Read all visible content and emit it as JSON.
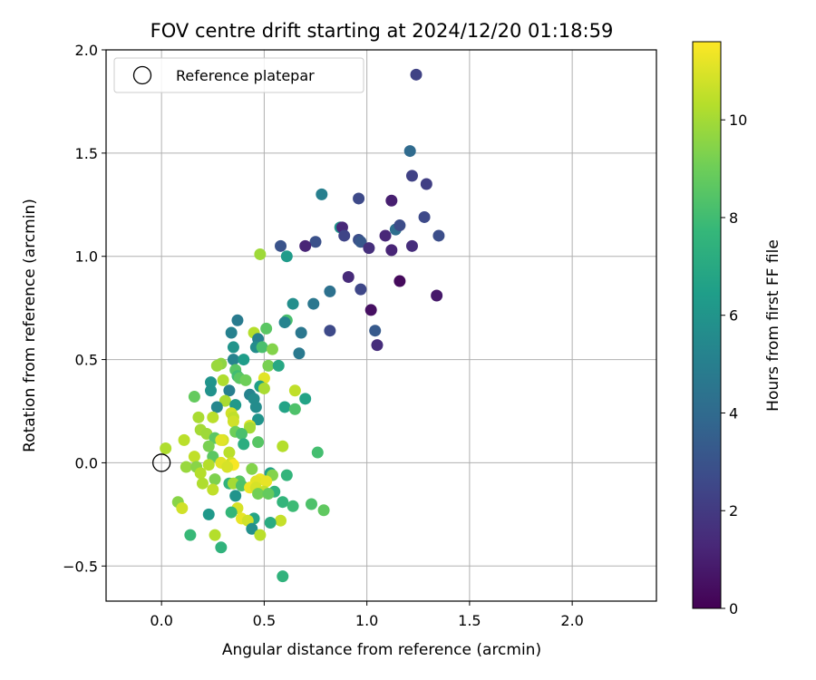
{
  "chart_data": {
    "type": "scatter",
    "title": "FOV centre drift starting at 2024/12/20 01:18:59",
    "xlabel": "Angular distance from reference (arcmin)",
    "ylabel": "Rotation from reference (arcmin)",
    "xlim": [
      -0.27,
      2.41
    ],
    "ylim": [
      -0.67,
      2.0
    ],
    "xticks": [
      0.0,
      0.5,
      1.0,
      1.5,
      2.0
    ],
    "xtick_labels": [
      "0.0",
      "0.5",
      "1.0",
      "1.5",
      "2.0"
    ],
    "yticks": [
      -0.5,
      0.0,
      0.5,
      1.0,
      1.5,
      2.0
    ],
    "ytick_labels": [
      "−0.5",
      "0.0",
      "0.5",
      "1.0",
      "1.5",
      "2.0"
    ],
    "grid": true,
    "legend": {
      "placement": "top-left",
      "entries": [
        {
          "label": "Reference platepar",
          "marker": "open-circle",
          "x": 0.0,
          "y": 0.0
        }
      ]
    },
    "colorbar": {
      "label": "Hours from first FF file",
      "colormap": "viridis",
      "range": [
        0,
        11.6
      ],
      "ticks": [
        0,
        2,
        4,
        6,
        8,
        10
      ],
      "tick_labels": [
        "0",
        "2",
        "4",
        "6",
        "8",
        "10"
      ]
    },
    "colormap_stops": [
      "#440154",
      "#482878",
      "#3e4989",
      "#31688e",
      "#26828e",
      "#1f9e89",
      "#35b779",
      "#6ece58",
      "#b5de2b",
      "#fde725"
    ],
    "points": [
      [
        1.24,
        1.88,
        2.3
      ],
      [
        1.21,
        1.51,
        4.0
      ],
      [
        1.22,
        1.39,
        2.3
      ],
      [
        1.29,
        1.35,
        2.2
      ],
      [
        1.12,
        1.27,
        1.0
      ],
      [
        0.96,
        1.28,
        2.6
      ],
      [
        0.78,
        1.3,
        5.0
      ],
      [
        1.28,
        1.19,
        2.6
      ],
      [
        1.14,
        1.13,
        4.2
      ],
      [
        1.16,
        1.15,
        2.7
      ],
      [
        0.87,
        1.14,
        6.0
      ],
      [
        0.88,
        1.14,
        1.3
      ],
      [
        0.89,
        1.1,
        2.4
      ],
      [
        0.96,
        1.08,
        2.8
      ],
      [
        0.97,
        1.07,
        3.2
      ],
      [
        1.09,
        1.1,
        1.3
      ],
      [
        1.35,
        1.1,
        2.8
      ],
      [
        0.75,
        1.07,
        2.9
      ],
      [
        0.58,
        1.05,
        3.0
      ],
      [
        0.7,
        1.05,
        1.2
      ],
      [
        1.01,
        1.04,
        1.6
      ],
      [
        1.12,
        1.03,
        1.2
      ],
      [
        1.22,
        1.05,
        1.5
      ],
      [
        0.61,
        1.0,
        6.3
      ],
      [
        0.48,
        1.01,
        9.9
      ],
      [
        0.91,
        0.9,
        1.4
      ],
      [
        1.16,
        0.88,
        0.3
      ],
      [
        0.82,
        0.83,
        4.3
      ],
      [
        0.97,
        0.84,
        2.5
      ],
      [
        1.34,
        0.81,
        0.8
      ],
      [
        0.64,
        0.77,
        5.7
      ],
      [
        0.74,
        0.77,
        4.6
      ],
      [
        1.02,
        0.74,
        0.5
      ],
      [
        0.61,
        0.69,
        8.2
      ],
      [
        0.6,
        0.68,
        5.2
      ],
      [
        0.37,
        0.69,
        4.8
      ],
      [
        0.51,
        0.65,
        8.6
      ],
      [
        0.45,
        0.63,
        10.3
      ],
      [
        0.68,
        0.63,
        4.6
      ],
      [
        0.82,
        0.64,
        2.6
      ],
      [
        1.04,
        0.64,
        3.3
      ],
      [
        0.34,
        0.63,
        5.1
      ],
      [
        0.47,
        0.6,
        5.0
      ],
      [
        1.05,
        0.57,
        1.5
      ],
      [
        0.35,
        0.56,
        6.0
      ],
      [
        0.46,
        0.56,
        5.6
      ],
      [
        0.49,
        0.56,
        8.2
      ],
      [
        0.54,
        0.55,
        9.4
      ],
      [
        0.67,
        0.53,
        4.7
      ],
      [
        0.35,
        0.5,
        5.2
      ],
      [
        0.4,
        0.5,
        6.4
      ],
      [
        0.29,
        0.48,
        9.6
      ],
      [
        0.27,
        0.47,
        9.8
      ],
      [
        0.52,
        0.47,
        9.2
      ],
      [
        0.57,
        0.47,
        6.9
      ],
      [
        0.36,
        0.45,
        8.5
      ],
      [
        0.37,
        0.42,
        8.0
      ],
      [
        0.38,
        0.41,
        8.6
      ],
      [
        0.41,
        0.4,
        9.0
      ],
      [
        0.3,
        0.4,
        10.2
      ],
      [
        0.5,
        0.41,
        11.1
      ],
      [
        0.24,
        0.39,
        6.0
      ],
      [
        0.33,
        0.35,
        5.0
      ],
      [
        0.48,
        0.37,
        6.5
      ],
      [
        0.5,
        0.36,
        10.1
      ],
      [
        0.24,
        0.35,
        5.9
      ],
      [
        0.65,
        0.35,
        10.5
      ],
      [
        0.16,
        0.32,
        8.8
      ],
      [
        0.43,
        0.33,
        5.2
      ],
      [
        0.45,
        0.31,
        5.6
      ],
      [
        0.7,
        0.31,
        6.7
      ],
      [
        0.31,
        0.3,
        10.1
      ],
      [
        0.27,
        0.27,
        5.4
      ],
      [
        0.36,
        0.28,
        6.2
      ],
      [
        0.46,
        0.27,
        5.6
      ],
      [
        0.6,
        0.27,
        6.7
      ],
      [
        0.65,
        0.26,
        8.3
      ],
      [
        0.34,
        0.24,
        10.8
      ],
      [
        0.35,
        0.22,
        10.5
      ],
      [
        0.25,
        0.22,
        10.4
      ],
      [
        0.18,
        0.22,
        10.1
      ],
      [
        0.47,
        0.21,
        6.0
      ],
      [
        0.35,
        0.2,
        10.8
      ],
      [
        0.43,
        0.18,
        11.0
      ],
      [
        0.43,
        0.17,
        10.0
      ],
      [
        0.19,
        0.16,
        10.0
      ],
      [
        0.36,
        0.15,
        9.0
      ],
      [
        0.39,
        0.14,
        8.2
      ],
      [
        0.22,
        0.14,
        9.9
      ],
      [
        0.26,
        0.12,
        8.6
      ],
      [
        0.3,
        0.11,
        10.8
      ],
      [
        0.11,
        0.11,
        10.4
      ],
      [
        0.29,
        0.11,
        11.1
      ],
      [
        0.47,
        0.1,
        8.5
      ],
      [
        0.4,
        0.09,
        7.2
      ],
      [
        0.59,
        0.08,
        10.3
      ],
      [
        0.23,
        0.08,
        9.2
      ],
      [
        0.02,
        0.07,
        10.2
      ],
      [
        0.33,
        0.05,
        10.4
      ],
      [
        0.76,
        0.05,
        8.1
      ],
      [
        0.25,
        0.03,
        8.6
      ],
      [
        0.16,
        0.03,
        10.5
      ],
      [
        0.34,
        0.0,
        10.8
      ],
      [
        0.35,
        -0.01,
        11.5
      ],
      [
        0.29,
        0.0,
        11.1
      ],
      [
        0.23,
        -0.01,
        10.3
      ],
      [
        0.12,
        -0.02,
        9.8
      ],
      [
        0.17,
        -0.02,
        9.5
      ],
      [
        0.32,
        -0.02,
        10.9
      ],
      [
        0.44,
        -0.03,
        9.4
      ],
      [
        0.53,
        -0.05,
        6.6
      ],
      [
        0.19,
        -0.05,
        10.3
      ],
      [
        0.61,
        -0.06,
        7.6
      ],
      [
        0.54,
        -0.06,
        9.4
      ],
      [
        0.48,
        -0.08,
        11.3
      ],
      [
        0.26,
        -0.08,
        9.3
      ],
      [
        0.46,
        -0.09,
        11.1
      ],
      [
        0.38,
        -0.09,
        8.5
      ],
      [
        0.51,
        -0.09,
        11.2
      ],
      [
        0.33,
        -0.1,
        7.5
      ],
      [
        0.35,
        -0.1,
        10.0
      ],
      [
        0.2,
        -0.1,
        10.2
      ],
      [
        0.39,
        -0.11,
        8.3
      ],
      [
        0.43,
        -0.12,
        11.3
      ],
      [
        0.46,
        -0.12,
        10.9
      ],
      [
        0.25,
        -0.13,
        10.5
      ],
      [
        0.5,
        -0.14,
        10.6
      ],
      [
        0.55,
        -0.14,
        7.5
      ],
      [
        0.47,
        -0.15,
        9.1
      ],
      [
        0.36,
        -0.16,
        6.0
      ],
      [
        0.52,
        -0.15,
        8.8
      ],
      [
        0.59,
        -0.19,
        7.6
      ],
      [
        0.08,
        -0.19,
        9.5
      ],
      [
        0.73,
        -0.2,
        8.3
      ],
      [
        0.64,
        -0.21,
        7.9
      ],
      [
        0.1,
        -0.22,
        10.8
      ],
      [
        0.37,
        -0.22,
        10.9
      ],
      [
        0.79,
        -0.23,
        8.7
      ],
      [
        0.23,
        -0.25,
        6.2
      ],
      [
        0.34,
        -0.24,
        7.7
      ],
      [
        0.39,
        -0.27,
        11.2
      ],
      [
        0.45,
        -0.27,
        6.8
      ],
      [
        0.58,
        -0.28,
        10.6
      ],
      [
        0.42,
        -0.28,
        10.8
      ],
      [
        0.53,
        -0.29,
        7.1
      ],
      [
        0.44,
        -0.32,
        5.8
      ],
      [
        0.48,
        -0.35,
        10.4
      ],
      [
        0.26,
        -0.35,
        10.3
      ],
      [
        0.14,
        -0.35,
        7.8
      ],
      [
        0.29,
        -0.41,
        7.5
      ],
      [
        0.59,
        -0.55,
        7.5
      ]
    ]
  }
}
